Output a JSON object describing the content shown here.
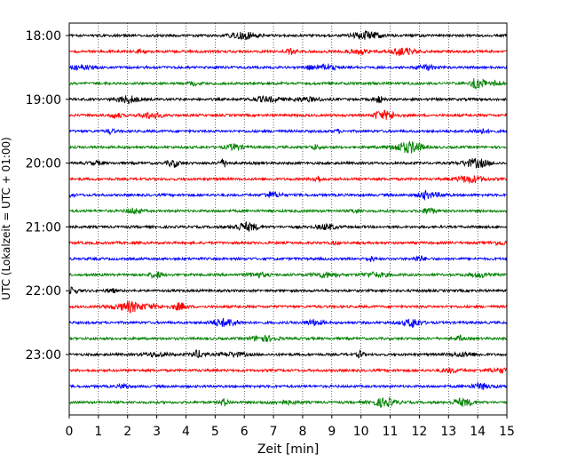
{
  "chart_data": {
    "type": "line",
    "title": "",
    "xlabel": "Zeit  [min]",
    "ylabel": "UTC (Lokalzeit = UTC + 01:00)",
    "xlim": [
      0,
      15
    ],
    "x_ticks": [
      "0",
      "1",
      "2",
      "3",
      "4",
      "5",
      "6",
      "7",
      "8",
      "9",
      "10",
      "11",
      "12",
      "13",
      "14",
      "15"
    ],
    "y_ticks": [
      "18:00",
      "19:00",
      "20:00",
      "21:00",
      "22:00",
      "23:00"
    ],
    "grid": "vertical dotted",
    "trace_interval_minutes": 15,
    "trace_count": 24,
    "trace_colors": [
      "#000000",
      "#ff0000",
      "#0000ff",
      "#008000"
    ]
  }
}
